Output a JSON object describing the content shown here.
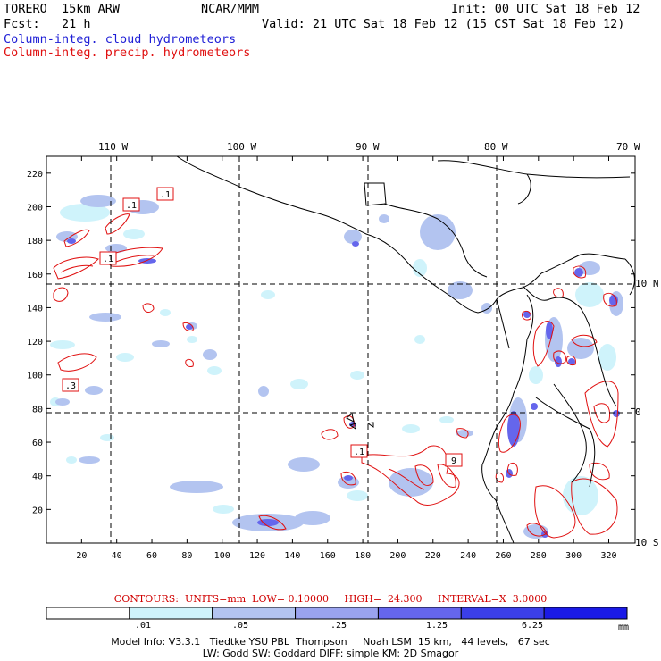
{
  "header": {
    "model": "TORERO  15km ARW",
    "org": "NCAR/MMM",
    "init": "Init: 00 UTC Sat 18 Feb 12",
    "fcst": "Fcst:   21 h",
    "valid": "Valid: 21 UTC Sat 18 Feb 12 (15 CST Sat 18 Feb 12)",
    "field1": "Column-integ. cloud hydrometeors",
    "field2": "Column-integ. precip. hydrometeors"
  },
  "map": {
    "lon_labels": [
      "110 W",
      "100 W",
      "90 W",
      "80 W",
      "70 W"
    ],
    "lat_labels": [
      "10 N",
      "0",
      "10 S"
    ],
    "y_ticks": [
      "220",
      "200",
      "180",
      "160",
      "140",
      "120",
      "100",
      "80",
      "60",
      "40",
      "20"
    ],
    "x_ticks": [
      "20",
      "40",
      "60",
      "80",
      "100",
      "120",
      "140",
      "160",
      "180",
      "200",
      "220",
      "240",
      "260",
      "280",
      "300",
      "320"
    ],
    "contour_labels": [
      ".1",
      ".1",
      ".1",
      ".3",
      ".1",
      "9"
    ]
  },
  "contours_line": "CONTOURS:  UNITS=mm  LOW= 0.10000     HIGH=  24.300     INTERVAL=X  3.0000",
  "colorbar": {
    "labels": [
      ".01",
      ".05",
      ".25",
      "1.25",
      "6.25"
    ],
    "units": "mm",
    "colors": [
      "#ffffff",
      "#cff3fb",
      "#b3c4f0",
      "#9aa3ef",
      "#6566ec",
      "#3b3fe8",
      "#1a1ae6"
    ]
  },
  "footer": {
    "line1": "Model Info: V3.3.1   Tiedtke YSU PBL  Thompson     Noah LSM  15 km,   44 levels,   67 sec",
    "line2": "LW: Godd SW: Goddard DIFF: simple KM: 2D Smagor"
  }
}
